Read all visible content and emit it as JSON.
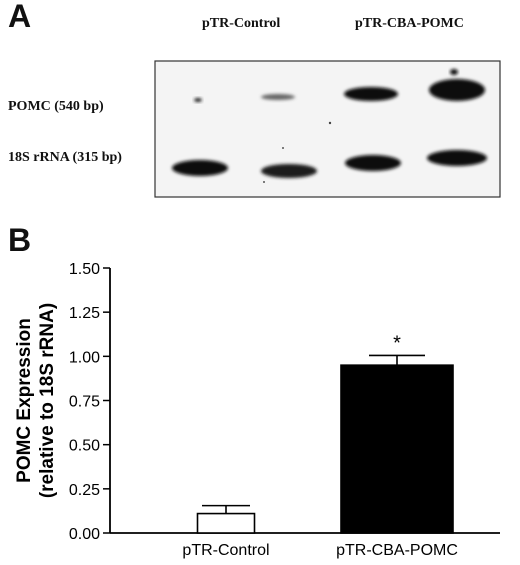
{
  "panel_a": {
    "letter": "A",
    "lane_headers": [
      "pTR-Control",
      "pTR-CBA-POMC"
    ],
    "row_labels": [
      "POMC (540 bp)",
      "18S rRNA (315 bp)"
    ]
  },
  "panel_b": {
    "letter": "B"
  },
  "chart_data": {
    "type": "bar",
    "categories": [
      "pTR-Control",
      "pTR-CBA-POMC"
    ],
    "values": [
      0.11,
      0.95
    ],
    "errors": [
      0.045,
      0.055
    ],
    "bar_colors": [
      "#ffffff",
      "#000000"
    ],
    "significance": [
      "",
      "*"
    ],
    "title": "",
    "xlabel": "",
    "ylabel": "POMC Expression",
    "ylabel_line2": "(relative to 18S rRNA)",
    "ylim": [
      0,
      1.5
    ],
    "yticks": [
      "0.00",
      "0.25",
      "0.50",
      "0.75",
      "1.00",
      "1.25",
      "1.50"
    ],
    "grid": false
  }
}
